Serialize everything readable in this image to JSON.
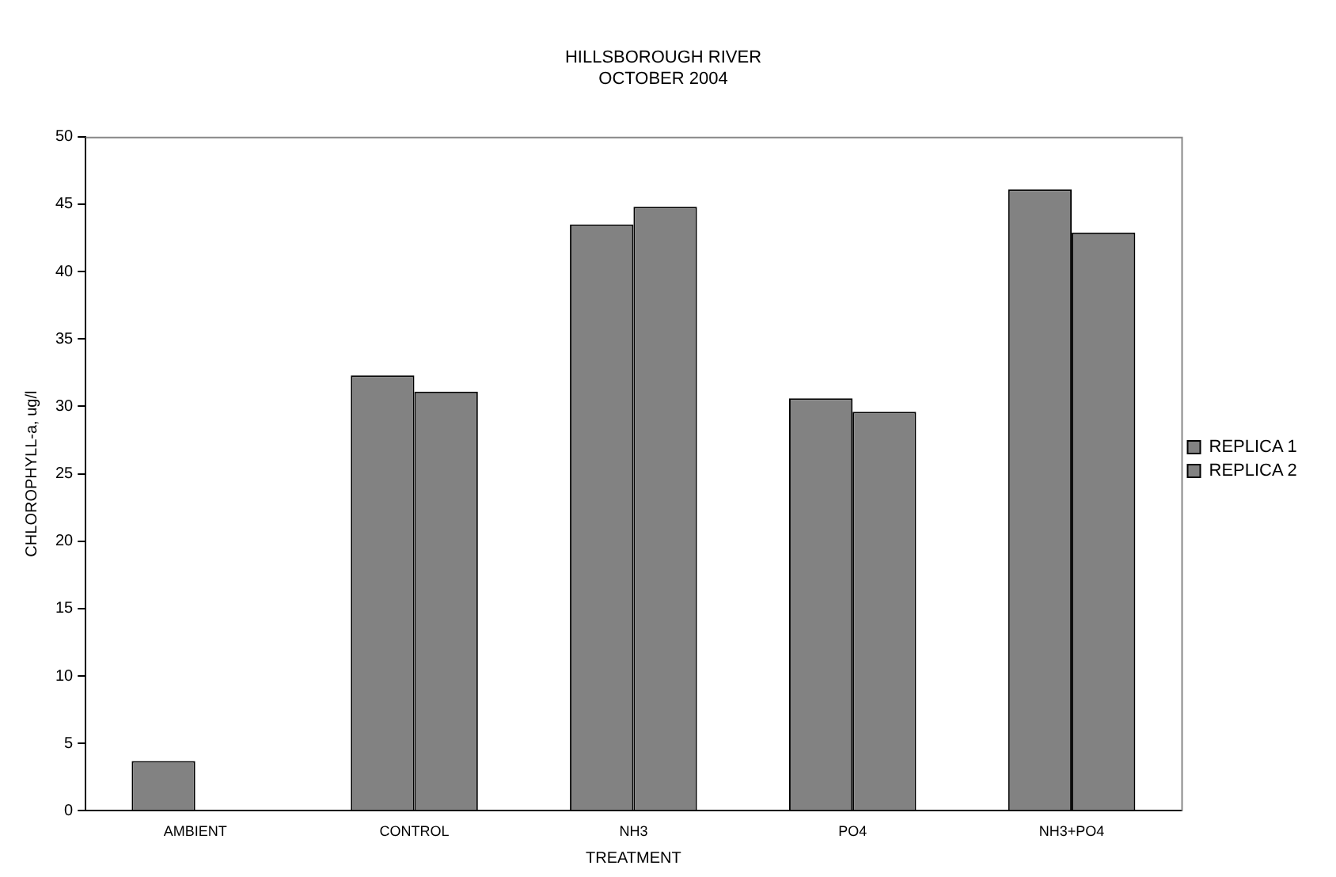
{
  "chart_data": {
    "type": "bar",
    "title": [
      "HILLSBOROUGH RIVER",
      "OCTOBER 2004"
    ],
    "xlabel": "TREATMENT",
    "ylabel": "CHLOROPHYLL-a, ug/l",
    "categories": [
      "AMBIENT",
      "CONTROL",
      "NH3",
      "PO4",
      "NH3+PO4"
    ],
    "series": [
      {
        "name": "REPLICA 1",
        "color": "#828282",
        "values": [
          3.7,
          32.3,
          43.5,
          30.6,
          46.1
        ]
      },
      {
        "name": "REPLICA 2",
        "color": "#828282",
        "values": [
          null,
          31.1,
          44.8,
          29.6,
          42.9
        ]
      }
    ],
    "ylim": [
      0,
      50
    ],
    "yticks": [
      0,
      5,
      10,
      15,
      20,
      25,
      30,
      35,
      40,
      45,
      50
    ],
    "grid": false,
    "legend": "right"
  }
}
